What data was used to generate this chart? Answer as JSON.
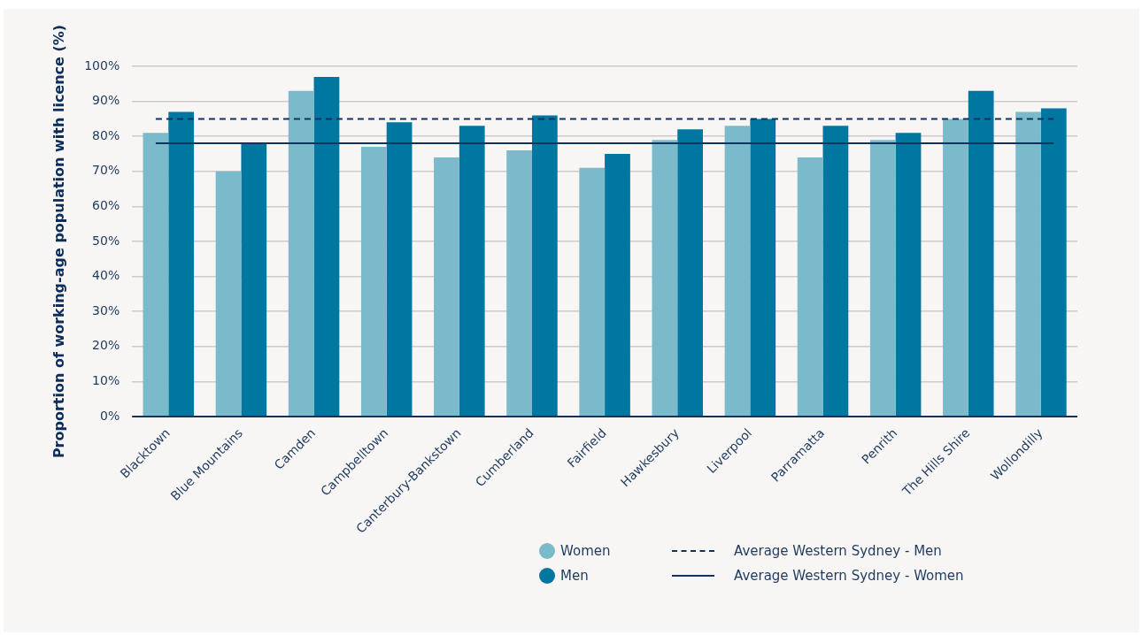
{
  "chart_data": {
    "type": "bar",
    "ylabel": "Proportion of working-age population with licence (%)",
    "categories": [
      "Blacktown",
      "Blue Mountains",
      "Camden",
      "Campbelltown",
      "Canterbury-Bankstown",
      "Cumberland",
      "Fairfield",
      "Hawkesbury",
      "Liverpool",
      "Parramatta",
      "Penrith",
      "The Hills Shire",
      "Wollondilly"
    ],
    "series": [
      {
        "name": "Women",
        "color": "#7bbacb",
        "values": [
          81,
          70,
          93,
          77,
          74,
          76,
          71,
          79,
          83,
          74,
          79,
          85,
          87
        ]
      },
      {
        "name": "Men",
        "color": "#0077a0",
        "values": [
          87,
          78,
          97,
          84,
          83,
          86,
          75,
          82,
          85,
          83,
          81,
          93,
          88
        ]
      }
    ],
    "ylim": [
      0,
      100
    ],
    "yticks": [
      {
        "value": 0,
        "label": "0%"
      },
      {
        "value": 10,
        "label": "10%"
      },
      {
        "value": 20,
        "label": "20%"
      },
      {
        "value": 30,
        "label": "30%"
      },
      {
        "value": 40,
        "label": "40%"
      },
      {
        "value": 50,
        "label": "50%"
      },
      {
        "value": 60,
        "label": "60%"
      },
      {
        "value": 70,
        "label": "70%"
      },
      {
        "value": 80,
        "label": "80%"
      },
      {
        "value": 90,
        "label": "90%"
      },
      {
        "value": 100,
        "label": "100%"
      }
    ],
    "ref_lines": [
      {
        "axis": "y",
        "value": 85,
        "label": "Average Western Sydney  - Men",
        "color": "#0d3461",
        "line_style": "dashed"
      },
      {
        "axis": "y",
        "value": 78,
        "label": "Average Western Sydney  - Women",
        "color": "#0d3461",
        "line_style": "solid"
      }
    ],
    "grid": "y",
    "legend": "bottom"
  }
}
